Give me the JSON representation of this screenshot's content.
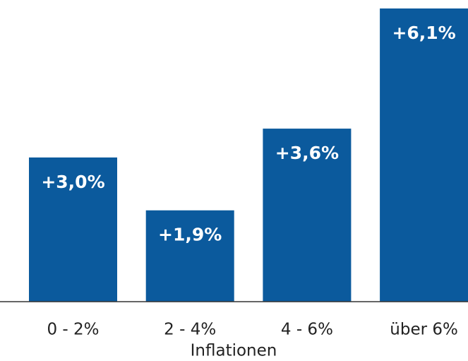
{
  "chart_data": {
    "type": "bar",
    "categories": [
      "0 - 2%",
      "2 - 4%",
      "4 - 6%",
      "über 6%"
    ],
    "values": [
      3.0,
      1.9,
      3.6,
      6.1
    ],
    "value_labels": [
      "+3,0%",
      "+1,9%",
      "+3,6%",
      "+6,1%"
    ],
    "color": "#0b5a9d",
    "xlabel": "Inflationen"
  }
}
